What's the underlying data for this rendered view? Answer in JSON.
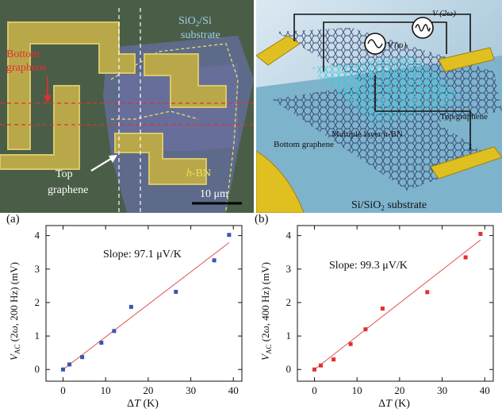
{
  "micrograph": {
    "substrate_label": "SiO2/Si substrate",
    "bottom_graphene_label": "Bottom graphene",
    "top_graphene_label": "Top graphene",
    "hbn_label": "h-BN",
    "scale_bar_label": "10 μm"
  },
  "schematic": {
    "v_omega_label": "V (ω)",
    "v_2omega_label": "V (2ω)",
    "top_graphene_label": "Top graphene",
    "hbn_label": "Multiple layer h-BN",
    "bottom_graphene_label": "Bottom graphene",
    "substrate_label": "Si/SiO2 substrate"
  },
  "chart_data": [
    {
      "type": "scatter",
      "panel_label": "(a)",
      "series": [
        {
          "color": "#3a55b0",
          "x": [
            0,
            1.5,
            4.5,
            9,
            12,
            16,
            26.5,
            35.5,
            39
          ],
          "y": [
            0.0,
            0.15,
            0.37,
            0.8,
            1.15,
            1.87,
            2.32,
            3.26,
            4.02
          ]
        }
      ],
      "fit_line": {
        "color": "#e05050",
        "x": [
          0,
          39
        ],
        "y": [
          0.0,
          3.79
        ]
      },
      "annotation": "Slope: 97.1 μV/K",
      "xlabel": "ΔT (K)",
      "ylabel": "V_AC (2ω, 200 Hz) (mV)",
      "xlim": [
        -4,
        42
      ],
      "ylim": [
        -0.35,
        4.3
      ],
      "x_ticks": [
        0,
        10,
        20,
        30,
        40
      ],
      "y_ticks": [
        0,
        1,
        2,
        3,
        4
      ]
    },
    {
      "type": "scatter",
      "panel_label": "(b)",
      "series": [
        {
          "color": "#e03030",
          "x": [
            0,
            1.5,
            4.5,
            8.5,
            12,
            16,
            26.5,
            35.5,
            39
          ],
          "y": [
            0.0,
            0.12,
            0.3,
            0.76,
            1.2,
            1.82,
            2.31,
            3.35,
            4.05
          ]
        }
      ],
      "fit_line": {
        "color": "#e05050",
        "x": [
          0,
          39
        ],
        "y": [
          0.0,
          3.87
        ]
      },
      "annotation": "Slope: 99.3 μV/K",
      "xlabel": "ΔT (K)",
      "ylabel": "V_AC (2ω, 400 Hz) (mV)",
      "xlim": [
        -4,
        42
      ],
      "ylim": [
        -0.35,
        4.3
      ],
      "x_ticks": [
        0,
        10,
        20,
        30,
        40
      ],
      "y_ticks": [
        0,
        1,
        2,
        3,
        4
      ]
    }
  ]
}
